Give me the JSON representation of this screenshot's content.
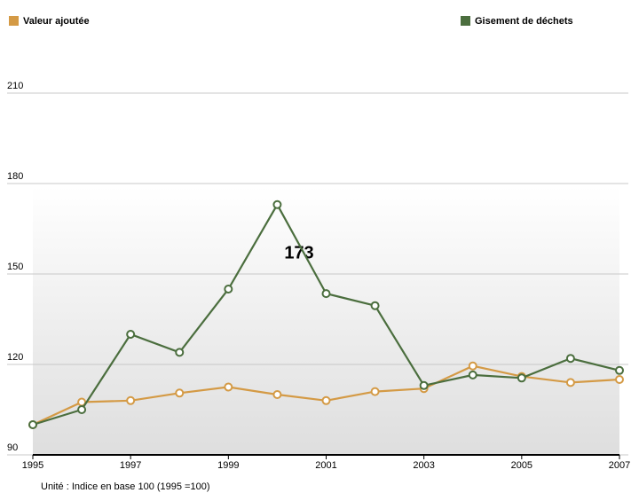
{
  "chart_data": {
    "type": "line",
    "x": [
      1995,
      1996,
      1997,
      1998,
      1999,
      2000,
      2001,
      2002,
      2003,
      2004,
      2005,
      2006,
      2007
    ],
    "series": [
      {
        "name": "Valeur ajoutée",
        "color": "#d49a45",
        "values": [
          100,
          107.5,
          108,
          110.5,
          112.5,
          110,
          108,
          111,
          112,
          119.5,
          116,
          114,
          115
        ]
      },
      {
        "name": "Gisement de déchets",
        "color": "#4b6e3e",
        "values": [
          100,
          105,
          130,
          124,
          145,
          173,
          143.5,
          139.5,
          113,
          116.5,
          115.5,
          122,
          118
        ]
      }
    ],
    "xlim": [
      1995,
      2007
    ],
    "xticks": [
      1995,
      1997,
      1999,
      2001,
      2003,
      2005,
      2007
    ],
    "ylim": [
      90,
      210
    ],
    "yticks": [
      90,
      120,
      150,
      180,
      210
    ],
    "grid": true,
    "annotation": "173",
    "note": "Unité : Indice en base 100 (1995 =100)"
  }
}
